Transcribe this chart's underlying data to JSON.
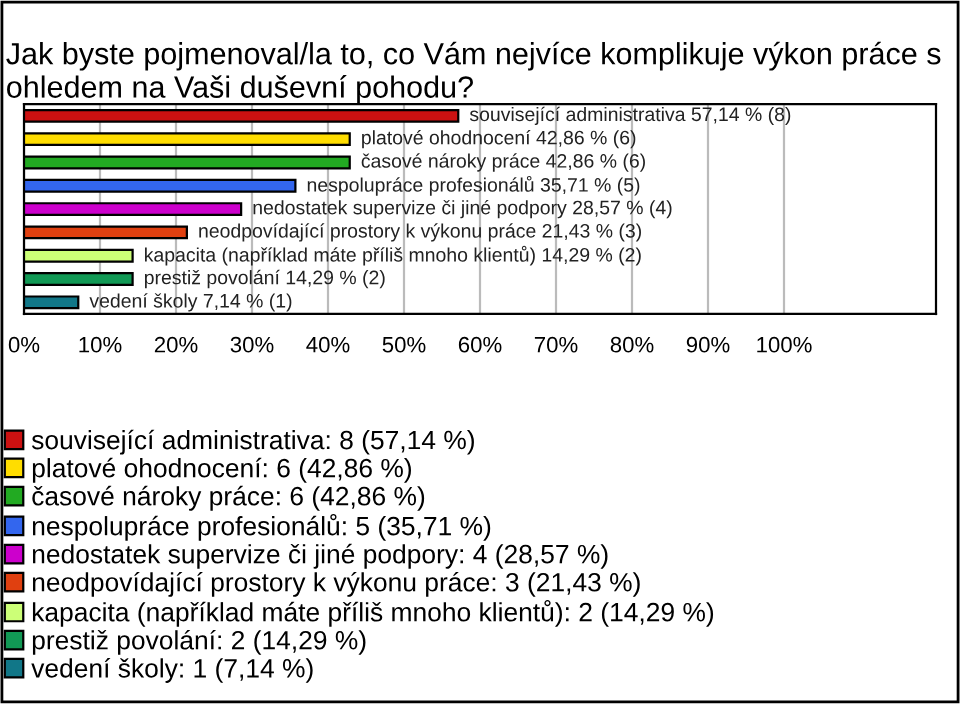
{
  "chart_data": {
    "type": "bar",
    "orientation": "horizontal",
    "title": "Jak byste pojmenoval/la to, co Vám nejvíce komplikuje výkon práce s ohledem na Vaši duševní pohodu?",
    "categories": [
      null,
      null,
      null,
      null,
      null,
      null,
      null,
      null,
      null
    ],
    "xlim": [
      0,
      120
    ],
    "xticks": [
      {
        "value": 0,
        "label": "0%"
      },
      {
        "value": 10,
        "label": "10%"
      },
      {
        "value": 20,
        "label": "20%"
      },
      {
        "value": 30,
        "label": "30%"
      },
      {
        "value": 40,
        "label": "40%"
      },
      {
        "value": 50,
        "label": "50%"
      },
      {
        "value": 60,
        "label": "60%"
      },
      {
        "value": 70,
        "label": "70%"
      },
      {
        "value": 80,
        "label": "80%"
      },
      {
        "value": 90,
        "label": "90%"
      },
      {
        "value": 100,
        "label": "100%"
      }
    ],
    "grid": "x",
    "legend": "bottom",
    "tick_labels": "x",
    "series": [
      {
        "name": "související administrativa: 8 (57,14 %)",
        "color": "#cc1111",
        "values": [
          57.14,
          null,
          null,
          null,
          null,
          null,
          null,
          null,
          null
        ],
        "value_labels": [
          "související administrativa 57,14 % (8)",
          null,
          null,
          null,
          null,
          null,
          null,
          null,
          null
        ]
      },
      {
        "name": "platové ohodnocení: 6 (42,86 %)",
        "color": "#ffdd00",
        "values": [
          null,
          42.86,
          null,
          null,
          null,
          null,
          null,
          null,
          null
        ],
        "value_labels": [
          null,
          "platové ohodnocení 42,86 % (6)",
          null,
          null,
          null,
          null,
          null,
          null,
          null
        ]
      },
      {
        "name": "časové nároky práce: 6 (42,86 %)",
        "color": "#22aa22",
        "values": [
          null,
          null,
          42.86,
          null,
          null,
          null,
          null,
          null,
          null
        ],
        "value_labels": [
          null,
          null,
          "časové nároky práce 42,86 % (6)",
          null,
          null,
          null,
          null,
          null,
          null
        ]
      },
      {
        "name": "nespolupráce profesionálů: 5 (35,71 %)",
        "color": "#3366ee",
        "values": [
          null,
          null,
          null,
          35.71,
          null,
          null,
          null,
          null,
          null
        ],
        "value_labels": [
          null,
          null,
          null,
          "nespolupráce profesionálů 35,71 % (5)",
          null,
          null,
          null,
          null,
          null
        ]
      },
      {
        "name": "nedostatek supervize či jiné podpory: 4 (28,57 %)",
        "color": "#cc00cc",
        "values": [
          null,
          null,
          null,
          null,
          28.57,
          null,
          null,
          null,
          null
        ],
        "value_labels": [
          null,
          null,
          null,
          null,
          "nedostatek supervize či jiné podpory 28,57 % (4)",
          null,
          null,
          null,
          null
        ]
      },
      {
        "name": "neodpovídající prostory k výkonu práce: 3 (21,43 %)",
        "color": "#e04010",
        "values": [
          null,
          null,
          null,
          null,
          null,
          21.43,
          null,
          null,
          null
        ],
        "value_labels": [
          null,
          null,
          null,
          null,
          null,
          "neodpovídající prostory k výkonu práce 21,43 % (3)",
          null,
          null,
          null
        ]
      },
      {
        "name": "kapacita (například máte příliš mnoho klientů): 2 (14,29 %)",
        "color": "#ccff77",
        "values": [
          null,
          null,
          null,
          null,
          null,
          null,
          14.29,
          null,
          null
        ],
        "value_labels": [
          null,
          null,
          null,
          null,
          null,
          null,
          "kapacita (například máte příliš mnoho klientů) 14,29 % (2)",
          null,
          null
        ]
      },
      {
        "name": "prestiž povolání: 2 (14,29 %)",
        "color": "#119955",
        "values": [
          null,
          null,
          null,
          null,
          null,
          null,
          null,
          14.29,
          null
        ],
        "value_labels": [
          null,
          null,
          null,
          null,
          null,
          null,
          null,
          "prestiž povolání 14,29 % (2)",
          null
        ]
      },
      {
        "name": "vedení školy: 1 (7,14 %)",
        "color": "#117788",
        "values": [
          null,
          null,
          null,
          null,
          null,
          null,
          null,
          null,
          7.14
        ],
        "value_labels": [
          null,
          null,
          null,
          null,
          null,
          null,
          null,
          null,
          "vedení školy 7,14 % (1)"
        ]
      }
    ]
  }
}
